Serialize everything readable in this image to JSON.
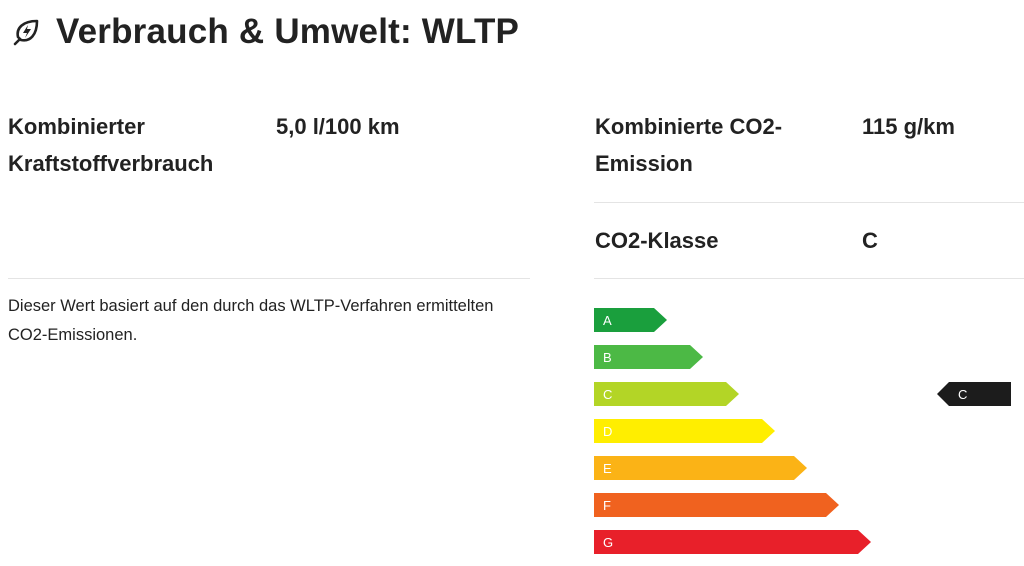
{
  "header": {
    "title": "Verbrauch & Umwelt: WLTP",
    "icon": "leaf-lightning-icon"
  },
  "left": {
    "fuel_label_line1": "Kombinierter",
    "fuel_label_line2": "Kraftstoffverbrauch",
    "fuel_value": "5,0 l/100 km",
    "note_line1": "Dieser Wert basiert auf den durch das WLTP-Verfahren ermittelten",
    "note_line2": "CO2-Emissionen."
  },
  "right": {
    "co2_label_line1": "Kombinierte CO2-",
    "co2_label_line2": "Emission",
    "co2_value": "115 g/km",
    "class_label": "CO2-Klasse",
    "class_value": "C"
  },
  "energy_label": {
    "classes": [
      "A",
      "B",
      "C",
      "D",
      "E",
      "F",
      "G"
    ],
    "colors": [
      "#1a9f3d",
      "#4cb945",
      "#b3d526",
      "#ffee00",
      "#fbb316",
      "#f0621f",
      "#e8202a"
    ],
    "selected": "C",
    "marker_color": "#1c1c1c"
  }
}
